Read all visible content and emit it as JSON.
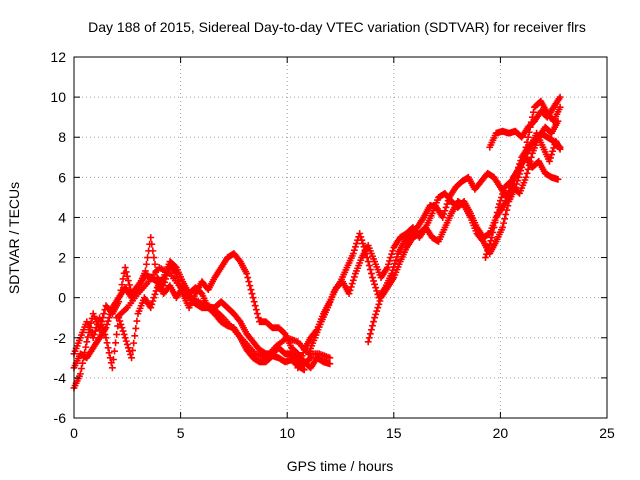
{
  "chart_data": {
    "type": "scatter",
    "title": "Day 188 of 2015, Sidereal Day-to-day VTEC variation (SDTVAR) for receiver flrs",
    "xlabel": "GPS time / hours",
    "ylabel": "SDTVAR / TECUs",
    "xlim": [
      0,
      25
    ],
    "ylim": [
      -6,
      12
    ],
    "xticks": [
      0,
      5,
      10,
      15,
      20,
      25
    ],
    "yticks": [
      -6,
      -4,
      -2,
      0,
      2,
      4,
      6,
      8,
      10,
      12
    ],
    "grid": true,
    "marker": "plus",
    "color": "#ff0000",
    "series": [
      {
        "points": [
          [
            0.0,
            -4.5
          ],
          [
            0.3,
            -3.8
          ],
          [
            0.6,
            -2.2
          ],
          [
            0.9,
            -0.8
          ],
          [
            1.2,
            -1.6
          ],
          [
            1.5,
            -0.4
          ],
          [
            1.8,
            -0.8
          ],
          [
            2.1,
            -0.2
          ],
          [
            2.4,
            1.5
          ],
          [
            2.7,
            0.2
          ],
          [
            3.0,
            0.6
          ],
          [
            3.3,
            1.0
          ],
          [
            3.6,
            3.0
          ],
          [
            3.9,
            1.0
          ],
          [
            4.2,
            0.6
          ],
          [
            4.5,
            1.6
          ],
          [
            4.8,
            1.2
          ],
          [
            5.1,
            0.2
          ],
          [
            5.4,
            -0.5
          ],
          [
            5.7,
            0.2
          ],
          [
            6.0,
            0.8
          ],
          [
            6.3,
            0.4
          ],
          [
            6.6,
            1.0
          ],
          [
            6.9,
            1.5
          ],
          [
            7.2,
            2.0
          ],
          [
            7.5,
            2.2
          ],
          [
            7.8,
            1.8
          ],
          [
            8.1,
            1.2
          ],
          [
            8.4,
            0.0
          ],
          [
            8.7,
            -1.2
          ],
          [
            9.0,
            -1.2
          ],
          [
            9.3,
            -1.5
          ],
          [
            9.6,
            -1.5
          ],
          [
            9.9,
            -1.8
          ],
          [
            10.2,
            -2.5
          ],
          [
            10.5,
            -2.8
          ],
          [
            10.8,
            -3.2
          ],
          [
            11.1,
            -3.5
          ],
          [
            11.4,
            -3.0
          ],
          [
            11.7,
            -3.2
          ],
          [
            12.0,
            -3.3
          ]
        ]
      },
      {
        "points": [
          [
            0.0,
            -2.8
          ],
          [
            0.3,
            -2.0
          ],
          [
            0.6,
            -1.2
          ],
          [
            0.9,
            -2.0
          ],
          [
            1.2,
            -1.0
          ],
          [
            1.5,
            -2.0
          ],
          [
            1.8,
            -3.5
          ],
          [
            2.1,
            -1.0
          ],
          [
            2.4,
            -2.0
          ],
          [
            2.7,
            -3.0
          ],
          [
            3.0,
            -0.8
          ],
          [
            3.3,
            0.0
          ],
          [
            3.6,
            -0.5
          ],
          [
            3.9,
            0.5
          ],
          [
            4.2,
            1.0
          ],
          [
            4.5,
            1.8
          ],
          [
            4.8,
            1.5
          ],
          [
            5.1,
            0.8
          ],
          [
            5.4,
            0.2
          ],
          [
            5.7,
            0.5
          ],
          [
            6.0,
            0.2
          ],
          [
            6.3,
            -0.5
          ],
          [
            6.6,
            -0.5
          ],
          [
            6.9,
            -0.2
          ],
          [
            7.2,
            -0.5
          ],
          [
            7.5,
            -0.8
          ],
          [
            7.8,
            -1.2
          ],
          [
            8.1,
            -1.8
          ],
          [
            8.4,
            -2.2
          ],
          [
            8.7,
            -2.6
          ],
          [
            9.0,
            -2.8
          ],
          [
            9.3,
            -2.8
          ],
          [
            9.6,
            -2.5
          ],
          [
            9.9,
            -2.8
          ],
          [
            10.2,
            -2.8
          ],
          [
            10.5,
            -3.2
          ],
          [
            10.8,
            -3.3
          ],
          [
            11.1,
            -3.0
          ]
        ]
      },
      {
        "points": [
          [
            0.0,
            -3.5
          ],
          [
            0.3,
            -2.8
          ],
          [
            0.6,
            -3.0
          ],
          [
            0.9,
            -2.5
          ],
          [
            1.2,
            -2.0
          ],
          [
            1.5,
            -1.5
          ],
          [
            1.8,
            -0.5
          ],
          [
            2.1,
            0.0
          ],
          [
            2.4,
            0.5
          ],
          [
            2.7,
            0.0
          ],
          [
            3.0,
            0.5
          ],
          [
            3.3,
            1.2
          ],
          [
            3.6,
            1.0
          ],
          [
            3.9,
            0.8
          ],
          [
            4.2,
            0.2
          ],
          [
            4.5,
            0.6
          ],
          [
            4.8,
            0.0
          ],
          [
            5.1,
            0.5
          ],
          [
            5.4,
            0.0
          ],
          [
            5.7,
            -0.3
          ],
          [
            6.0,
            -0.5
          ],
          [
            6.3,
            -0.5
          ],
          [
            6.6,
            -0.8
          ],
          [
            6.9,
            -1.2
          ],
          [
            7.2,
            -1.4
          ],
          [
            7.5,
            -1.5
          ],
          [
            7.8,
            -2.0
          ],
          [
            8.1,
            -2.6
          ],
          [
            8.4,
            -3.0
          ],
          [
            8.7,
            -3.2
          ],
          [
            9.0,
            -3.2
          ],
          [
            9.3,
            -2.9
          ],
          [
            9.6,
            -3.0
          ],
          [
            9.9,
            -3.2
          ],
          [
            10.2,
            -3.1
          ],
          [
            10.5,
            -3.4
          ],
          [
            10.8,
            -3.6
          ]
        ]
      },
      {
        "points": [
          [
            2.0,
            -1.0
          ],
          [
            2.5,
            -0.5
          ],
          [
            3.0,
            0.2
          ],
          [
            3.5,
            0.8
          ],
          [
            4.0,
            1.5
          ],
          [
            4.5,
            1.2
          ],
          [
            5.0,
            0.5
          ],
          [
            5.5,
            0.0
          ],
          [
            6.0,
            -0.3
          ],
          [
            6.5,
            -0.5
          ],
          [
            7.0,
            -1.0
          ],
          [
            7.5,
            -1.6
          ],
          [
            8.0,
            -2.2
          ],
          [
            8.5,
            -2.8
          ],
          [
            9.0,
            -3.0
          ],
          [
            9.5,
            -2.4
          ],
          [
            10.0,
            -2.0
          ],
          [
            10.5,
            -2.2
          ],
          [
            11.0,
            -2.8
          ],
          [
            11.5,
            -2.8
          ],
          [
            12.0,
            -3.0
          ]
        ]
      },
      {
        "points": [
          [
            10.5,
            -3.5
          ],
          [
            10.8,
            -2.6
          ],
          [
            11.1,
            -2.0
          ],
          [
            11.4,
            -1.6
          ],
          [
            11.7,
            -0.8
          ],
          [
            12.0,
            -0.2
          ],
          [
            12.3,
            0.5
          ],
          [
            12.6,
            0.8
          ],
          [
            12.9,
            0.2
          ],
          [
            13.2,
            1.2
          ],
          [
            13.5,
            2.0
          ],
          [
            13.8,
            2.6
          ],
          [
            14.1,
            1.8
          ],
          [
            14.4,
            1.0
          ],
          [
            14.7,
            1.5
          ],
          [
            15.0,
            2.5
          ],
          [
            15.3,
            3.0
          ],
          [
            15.6,
            3.2
          ],
          [
            15.9,
            3.5
          ],
          [
            16.2,
            3.0
          ],
          [
            16.5,
            3.5
          ],
          [
            16.8,
            4.2
          ],
          [
            17.1,
            5.0
          ],
          [
            17.4,
            5.2
          ],
          [
            17.7,
            4.8
          ],
          [
            18.0,
            4.5
          ],
          [
            18.3,
            4.8
          ],
          [
            18.6,
            4.2
          ],
          [
            18.9,
            3.5
          ],
          [
            19.2,
            3.0
          ],
          [
            19.5,
            3.2
          ],
          [
            19.8,
            4.0
          ],
          [
            20.1,
            4.5
          ],
          [
            20.4,
            5.0
          ],
          [
            20.7,
            6.0
          ],
          [
            21.0,
            7.0
          ],
          [
            21.3,
            7.5
          ],
          [
            21.6,
            7.8
          ],
          [
            21.9,
            8.2
          ],
          [
            22.2,
            8.0
          ],
          [
            22.5,
            7.8
          ],
          [
            22.8,
            7.5
          ]
        ]
      },
      {
        "points": [
          [
            11.0,
            -2.8
          ],
          [
            11.3,
            -2.0
          ],
          [
            11.6,
            -1.2
          ],
          [
            11.9,
            -0.5
          ],
          [
            12.2,
            0.3
          ],
          [
            12.5,
            0.8
          ],
          [
            12.8,
            1.5
          ],
          [
            13.1,
            2.2
          ],
          [
            13.4,
            3.2
          ],
          [
            13.7,
            2.2
          ],
          [
            14.0,
            1.0
          ],
          [
            14.3,
            0.0
          ],
          [
            14.6,
            0.5
          ],
          [
            14.9,
            1.2
          ],
          [
            15.2,
            2.2
          ],
          [
            15.5,
            2.8
          ],
          [
            15.8,
            3.2
          ],
          [
            16.1,
            3.5
          ],
          [
            16.4,
            4.0
          ],
          [
            16.7,
            4.6
          ],
          [
            17.0,
            4.5
          ],
          [
            17.3,
            4.0
          ],
          [
            17.6,
            5.0
          ],
          [
            17.9,
            5.5
          ],
          [
            18.2,
            5.8
          ],
          [
            18.5,
            6.0
          ],
          [
            18.8,
            5.4
          ],
          [
            19.1,
            5.8
          ],
          [
            19.4,
            6.2
          ],
          [
            19.7,
            6.0
          ],
          [
            20.0,
            5.5
          ],
          [
            20.3,
            5.0
          ],
          [
            20.6,
            6.0
          ],
          [
            20.9,
            6.5
          ],
          [
            21.2,
            7.0
          ],
          [
            21.5,
            6.5
          ],
          [
            21.8,
            6.8
          ],
          [
            22.1,
            6.2
          ],
          [
            22.4,
            6.0
          ],
          [
            22.7,
            5.9
          ]
        ]
      },
      {
        "points": [
          [
            13.8,
            -2.2
          ],
          [
            14.1,
            -1.0
          ],
          [
            14.4,
            0.0
          ],
          [
            14.7,
            0.5
          ],
          [
            15.0,
            1.0
          ],
          [
            15.3,
            1.8
          ],
          [
            15.6,
            2.5
          ],
          [
            15.9,
            3.0
          ],
          [
            16.2,
            3.2
          ],
          [
            16.5,
            3.5
          ],
          [
            16.8,
            3.0
          ],
          [
            17.1,
            2.8
          ],
          [
            17.4,
            3.5
          ],
          [
            17.7,
            4.2
          ],
          [
            18.0,
            4.8
          ],
          [
            18.3,
            4.6
          ],
          [
            18.6,
            4.0
          ],
          [
            18.9,
            3.2
          ],
          [
            19.2,
            2.8
          ],
          [
            19.5,
            2.2
          ],
          [
            19.8,
            2.8
          ],
          [
            20.1,
            3.5
          ],
          [
            20.4,
            4.8
          ],
          [
            20.7,
            5.5
          ],
          [
            21.0,
            6.5
          ],
          [
            21.3,
            8.0
          ],
          [
            21.6,
            9.5
          ],
          [
            21.9,
            9.8
          ],
          [
            22.2,
            9.2
          ],
          [
            22.5,
            8.8
          ],
          [
            22.8,
            9.5
          ]
        ]
      },
      {
        "points": [
          [
            19.3,
            2.0
          ],
          [
            19.6,
            3.0
          ],
          [
            19.9,
            4.5
          ],
          [
            20.2,
            5.5
          ],
          [
            20.5,
            5.8
          ],
          [
            20.8,
            6.2
          ],
          [
            21.1,
            7.0
          ],
          [
            21.4,
            7.5
          ],
          [
            21.7,
            8.2
          ],
          [
            22.0,
            7.5
          ],
          [
            22.3,
            6.8
          ],
          [
            22.6,
            7.8
          ],
          [
            22.8,
            7.4
          ]
        ]
      },
      {
        "points": [
          [
            19.5,
            7.5
          ],
          [
            19.8,
            8.2
          ],
          [
            20.1,
            8.3
          ],
          [
            20.4,
            8.2
          ],
          [
            20.7,
            8.3
          ],
          [
            21.0,
            8.0
          ],
          [
            21.3,
            8.5
          ],
          [
            21.6,
            8.8
          ],
          [
            21.9,
            9.3
          ],
          [
            22.2,
            9.0
          ],
          [
            22.5,
            9.5
          ],
          [
            22.8,
            10.0
          ]
        ]
      },
      {
        "points": [
          [
            20.3,
            5.0
          ],
          [
            20.6,
            5.5
          ],
          [
            20.9,
            5.2
          ],
          [
            21.2,
            6.0
          ],
          [
            21.5,
            7.2
          ],
          [
            21.8,
            8.0
          ],
          [
            22.1,
            8.5
          ],
          [
            22.4,
            8.2
          ],
          [
            22.7,
            8.8
          ]
        ]
      }
    ]
  }
}
